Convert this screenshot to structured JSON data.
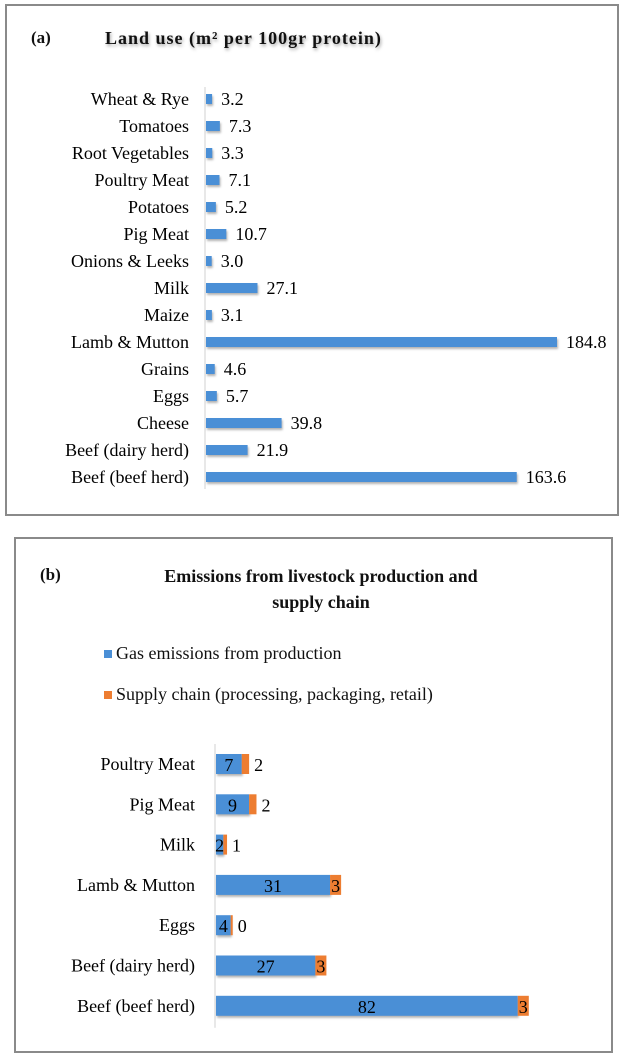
{
  "chart_data": [
    {
      "type": "bar",
      "orientation": "horizontal",
      "panel_tag": "(a)",
      "title": "Land use (m² per 100gr protein)",
      "categories": [
        "Wheat & Rye",
        "Tomatoes",
        "Root Vegetables",
        "Poultry Meat",
        "Potatoes",
        "Pig Meat",
        "Onions & Leeks",
        "Milk",
        "Maize",
        "Lamb & Mutton",
        "Grains",
        "Eggs",
        "Cheese",
        "Beef (dairy herd)",
        "Beef (beef herd)"
      ],
      "values": [
        3.2,
        7.3,
        3.3,
        7.1,
        5.2,
        10.7,
        3.0,
        27.1,
        3.1,
        184.8,
        4.6,
        5.7,
        39.8,
        21.9,
        163.6
      ],
      "value_labels": [
        "3.2",
        "7.3",
        "3.3",
        "7.1",
        "5.2",
        "10.7",
        "3.0",
        "27.1",
        "3.1",
        "184.8",
        "4.6",
        "5.7",
        "39.8",
        "21.9",
        "163.6"
      ],
      "color": "#4a8fd6",
      "xlim": [
        0,
        185
      ],
      "grid": false
    },
    {
      "type": "bar",
      "orientation": "horizontal",
      "stacked": true,
      "panel_tag": "(b)",
      "title_lines": [
        "Emissions from livestock production and",
        "supply chain"
      ],
      "legend_position": "top",
      "categories": [
        "Poultry Meat",
        "Pig Meat",
        "Milk",
        "Lamb & Mutton",
        "Eggs",
        "Beef (dairy herd)",
        "Beef (beef herd)"
      ],
      "series": [
        {
          "name": "Gas emissions from production",
          "color": "#4a8fd6",
          "values": [
            7,
            9,
            2,
            31,
            4,
            27,
            82
          ]
        },
        {
          "name": "Supply chain (processing, packaging, retail)",
          "color": "#ed7d31",
          "values": [
            2,
            2,
            1,
            3,
            0,
            3,
            3
          ]
        }
      ],
      "xlim": [
        0,
        85
      ],
      "grid": false
    }
  ]
}
